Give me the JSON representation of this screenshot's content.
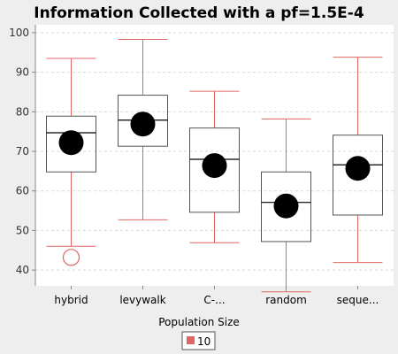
{
  "chart_data": {
    "type": "box",
    "title": "Information Collected with a pf=1.5E-4",
    "xlabel": "",
    "ylabel": "",
    "ylim": [
      36,
      102
    ],
    "yticks": [
      40,
      50,
      60,
      70,
      80,
      90,
      100
    ],
    "grid": true,
    "categories": [
      "hybrid",
      "levywalk",
      "C-...",
      "random",
      "seque..."
    ],
    "series": [
      {
        "name": "10",
        "color": "#e06666",
        "boxes": [
          {
            "category": "hybrid",
            "whisker_low": 46.0,
            "q1": 64.8,
            "median": 74.7,
            "q3": 78.9,
            "whisker_high": 93.5,
            "mean": 72.2,
            "outliers": [
              43.2
            ]
          },
          {
            "category": "levywalk",
            "whisker_low": 52.7,
            "q1": 71.3,
            "median": 77.9,
            "q3": 84.2,
            "whisker_high": 98.3,
            "mean": 76.9,
            "outliers": []
          },
          {
            "category": "C-...",
            "whisker_low": 46.9,
            "q1": 54.6,
            "median": 68.0,
            "q3": 75.9,
            "whisker_high": 85.2,
            "mean": 66.4,
            "outliers": []
          },
          {
            "category": "random",
            "whisker_low": 34.5,
            "q1": 47.2,
            "median": 57.1,
            "q3": 64.8,
            "whisker_high": 78.2,
            "mean": 56.2,
            "outliers": []
          },
          {
            "category": "seque...",
            "whisker_low": 41.9,
            "q1": 53.9,
            "median": 66.6,
            "q3": 74.1,
            "whisker_high": 93.8,
            "mean": 65.7,
            "outliers": []
          }
        ]
      }
    ],
    "legend": {
      "title": "Population Size",
      "placement": "bottom",
      "items": [
        "10"
      ]
    }
  }
}
